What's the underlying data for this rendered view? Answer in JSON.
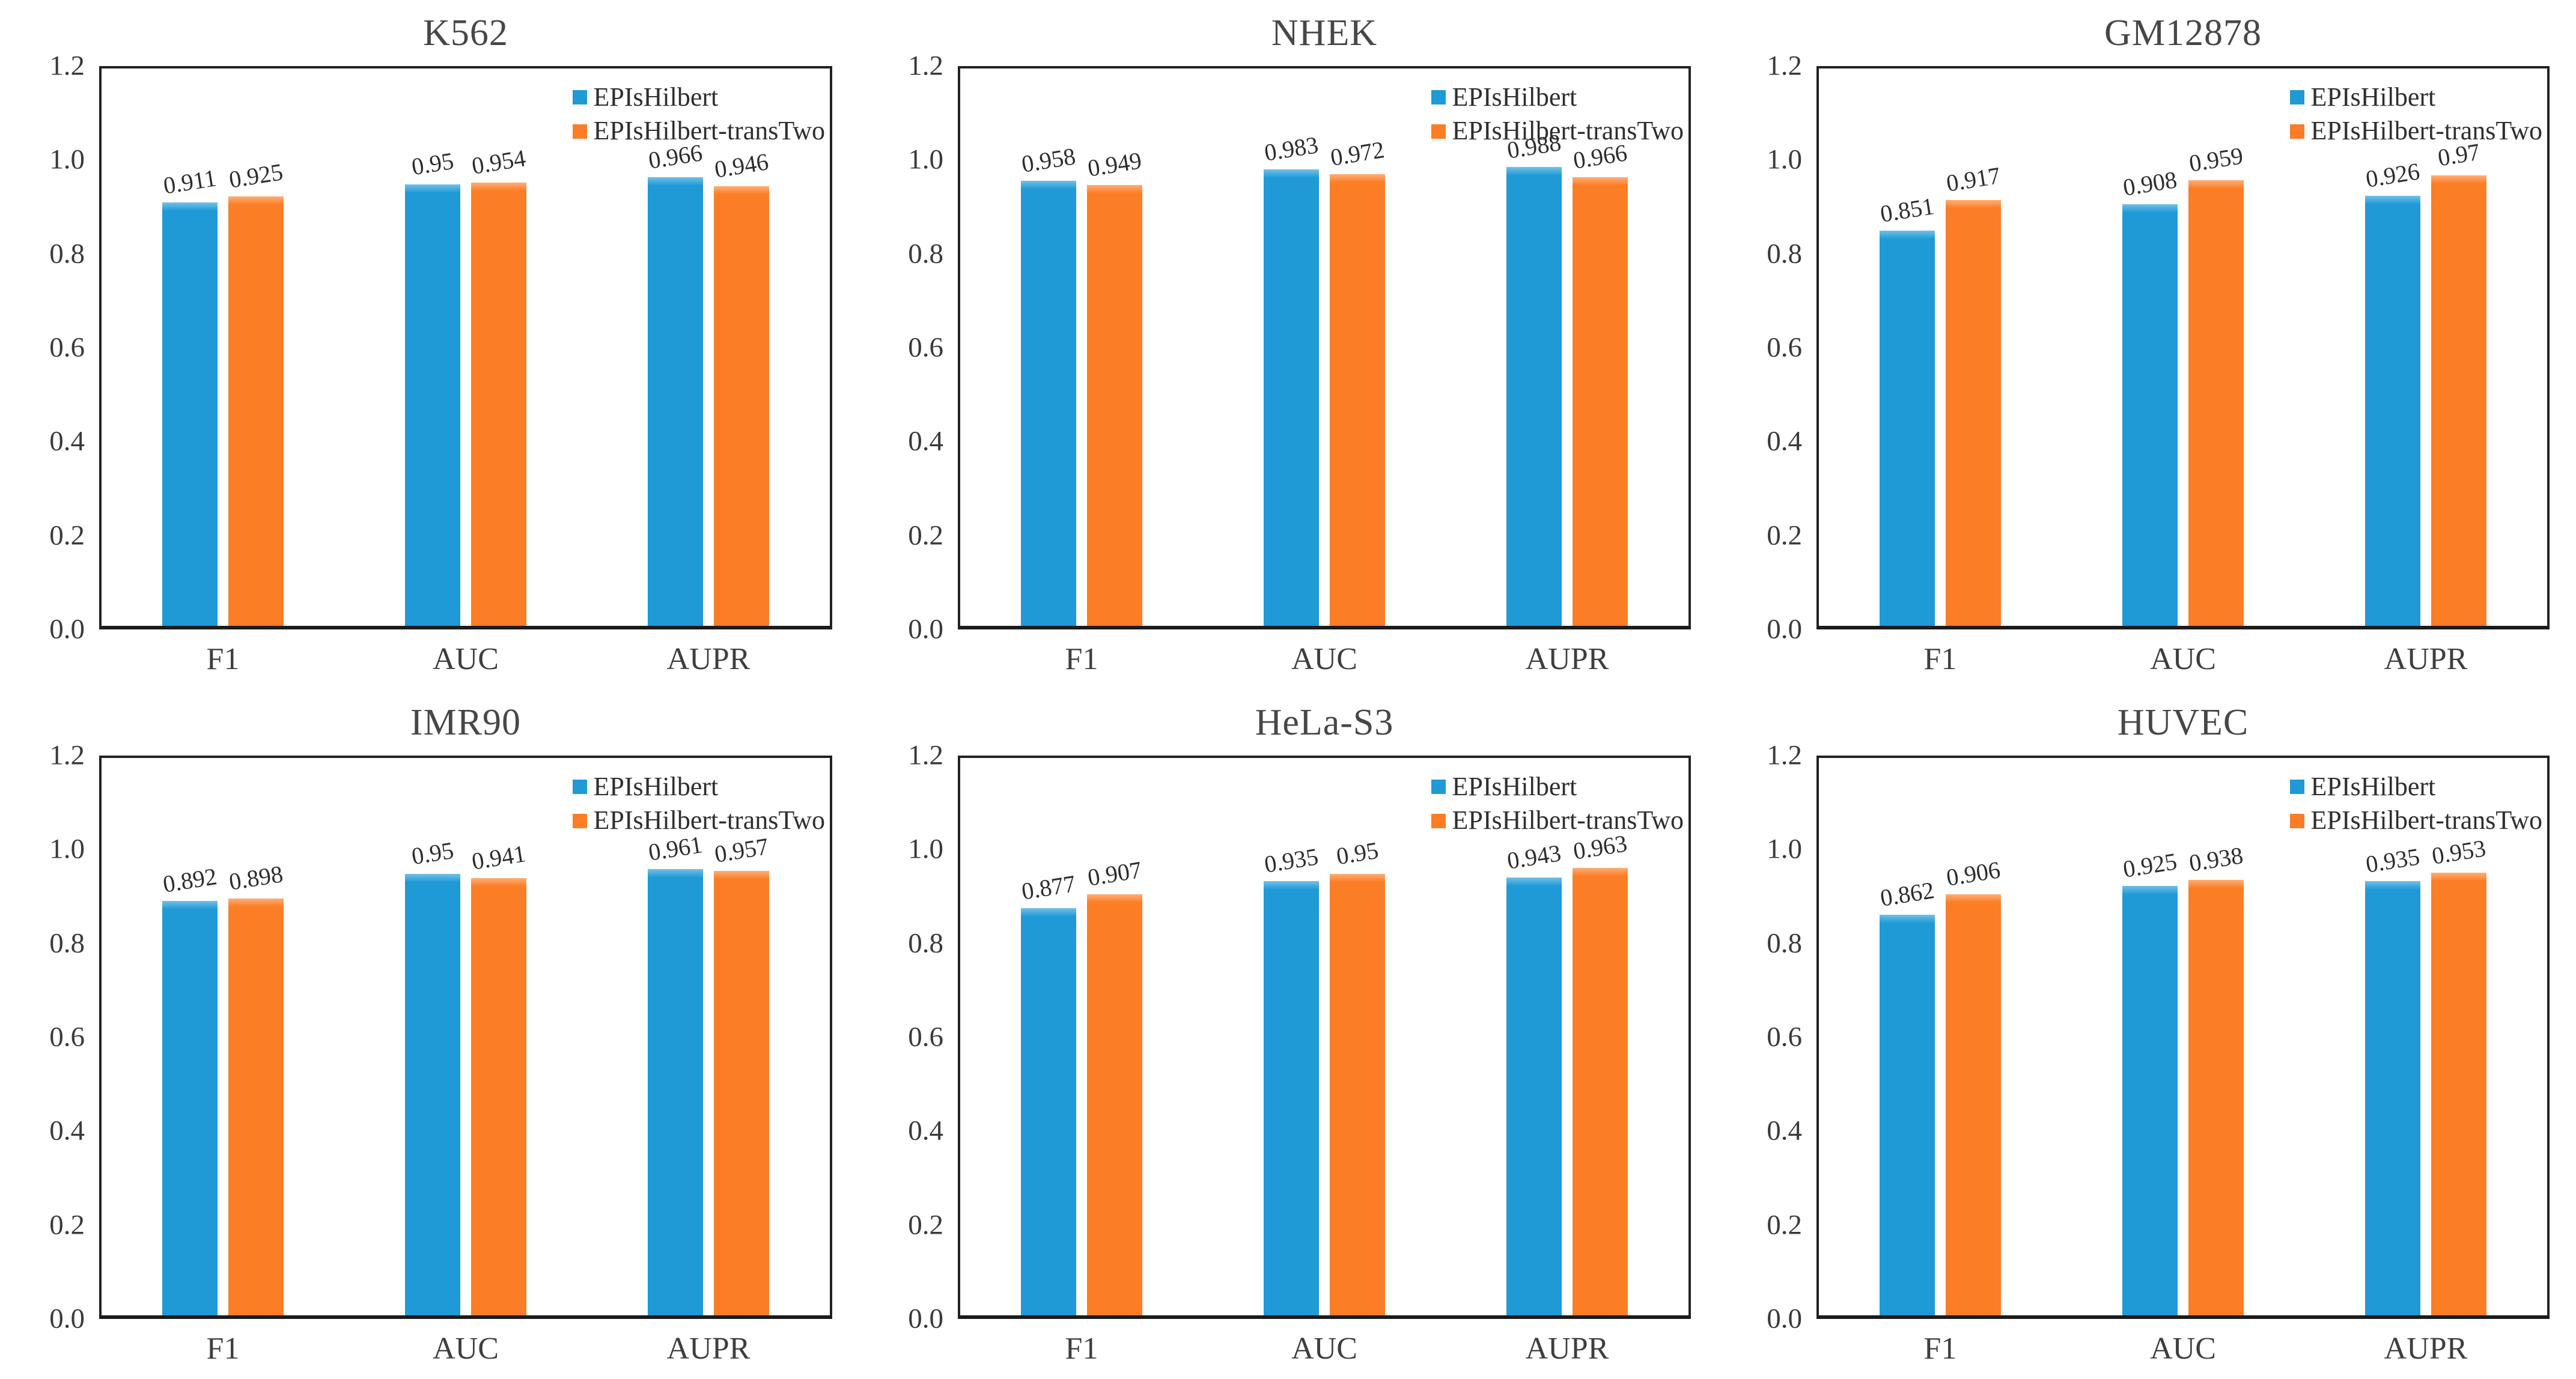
{
  "figure": {
    "background": "#FFFFFF",
    "text_color": "#3C3C3C",
    "axis_border_color": "#222222",
    "series_palette": [
      "#1F9AD6",
      "#FB7D25"
    ],
    "series_names": [
      "EPIsHilbert",
      "EPIsHilbert-transTwo"
    ],
    "layout": "2 rows x 3 columns"
  },
  "chart_data": [
    {
      "type": "bar",
      "title": "K562",
      "categories": [
        "F1",
        "AUC",
        "AUPR"
      ],
      "series": [
        {
          "name": "EPIsHilbert",
          "color": "#1F9AD6",
          "values": [
            0.911,
            0.95,
            0.966
          ],
          "labels": [
            "0.911",
            "0.95",
            "0.966"
          ]
        },
        {
          "name": "EPIsHilbert-transTwo",
          "color": "#FB7D25",
          "values": [
            0.925,
            0.954,
            0.946
          ],
          "labels": [
            "0.925",
            "0.954",
            "0.946"
          ]
        }
      ],
      "xlabel": "",
      "ylabel": "",
      "ylim": [
        0,
        1.2
      ],
      "yticks": [
        "0.0",
        "0.2",
        "0.4",
        "0.6",
        "0.8",
        "1.0",
        "1.2"
      ],
      "grid": false,
      "legend_position": "top-right-inside"
    },
    {
      "type": "bar",
      "title": "NHEK",
      "categories": [
        "F1",
        "AUC",
        "AUPR"
      ],
      "series": [
        {
          "name": "EPIsHilbert",
          "color": "#1F9AD6",
          "values": [
            0.958,
            0.983,
            0.988
          ],
          "labels": [
            "0.958",
            "0.983",
            "0.988"
          ]
        },
        {
          "name": "EPIsHilbert-transTwo",
          "color": "#FB7D25",
          "values": [
            0.949,
            0.972,
            0.966
          ],
          "labels": [
            "0.949",
            "0.972",
            "0.966"
          ]
        }
      ],
      "xlabel": "",
      "ylabel": "",
      "ylim": [
        0,
        1.2
      ],
      "yticks": [
        "0.0",
        "0.2",
        "0.4",
        "0.6",
        "0.8",
        "1.0",
        "1.2"
      ],
      "grid": false,
      "legend_position": "top-right-inside"
    },
    {
      "type": "bar",
      "title": "GM12878",
      "categories": [
        "F1",
        "AUC",
        "AUPR"
      ],
      "series": [
        {
          "name": "EPIsHilbert",
          "color": "#1F9AD6",
          "values": [
            0.851,
            0.908,
            0.926
          ],
          "labels": [
            "0.851",
            "0.908",
            "0.926"
          ]
        },
        {
          "name": "EPIsHilbert-transTwo",
          "color": "#FB7D25",
          "values": [
            0.917,
            0.959,
            0.97
          ],
          "labels": [
            "0.917",
            "0.959",
            "0.97"
          ]
        }
      ],
      "xlabel": "",
      "ylabel": "",
      "ylim": [
        0,
        1.2
      ],
      "yticks": [
        "0.0",
        "0.2",
        "0.4",
        "0.6",
        "0.8",
        "1.0",
        "1.2"
      ],
      "grid": false,
      "legend_position": "top-right-inside"
    },
    {
      "type": "bar",
      "title": "IMR90",
      "categories": [
        "F1",
        "AUC",
        "AUPR"
      ],
      "series": [
        {
          "name": "EPIsHilbert",
          "color": "#1F9AD6",
          "values": [
            0.892,
            0.95,
            0.961
          ],
          "labels": [
            "0.892",
            "0.95",
            "0.961"
          ]
        },
        {
          "name": "EPIsHilbert-transTwo",
          "color": "#FB7D25",
          "values": [
            0.898,
            0.941,
            0.957
          ],
          "labels": [
            "0.898",
            "0.941",
            "0.957"
          ]
        }
      ],
      "xlabel": "",
      "ylabel": "",
      "ylim": [
        0,
        1.2
      ],
      "yticks": [
        "0.0",
        "0.2",
        "0.4",
        "0.6",
        "0.8",
        "1.0",
        "1.2"
      ],
      "grid": false,
      "legend_position": "top-right-inside"
    },
    {
      "type": "bar",
      "title": "HeLa-S3",
      "categories": [
        "F1",
        "AUC",
        "AUPR"
      ],
      "series": [
        {
          "name": "EPIsHilbert",
          "color": "#1F9AD6",
          "values": [
            0.877,
            0.935,
            0.943
          ],
          "labels": [
            "0.877",
            "0.935",
            "0.943"
          ]
        },
        {
          "name": "EPIsHilbert-transTwo",
          "color": "#FB7D25",
          "values": [
            0.907,
            0.95,
            0.963
          ],
          "labels": [
            "0.907",
            "0.95",
            "0.963"
          ]
        }
      ],
      "xlabel": "",
      "ylabel": "",
      "ylim": [
        0,
        1.2
      ],
      "yticks": [
        "0.0",
        "0.2",
        "0.4",
        "0.6",
        "0.8",
        "1.0",
        "1.2"
      ],
      "grid": false,
      "legend_position": "top-right-inside"
    },
    {
      "type": "bar",
      "title": "HUVEC",
      "categories": [
        "F1",
        "AUC",
        "AUPR"
      ],
      "series": [
        {
          "name": "EPIsHilbert",
          "color": "#1F9AD6",
          "values": [
            0.862,
            0.925,
            0.935
          ],
          "labels": [
            "0.862",
            "0.925",
            "0.935"
          ]
        },
        {
          "name": "EPIsHilbert-transTwo",
          "color": "#FB7D25",
          "values": [
            0.906,
            0.938,
            0.953
          ],
          "labels": [
            "0.906",
            "0.938",
            "0.953"
          ]
        }
      ],
      "xlabel": "",
      "ylabel": "",
      "ylim": [
        0,
        1.2
      ],
      "yticks": [
        "0.0",
        "0.2",
        "0.4",
        "0.6",
        "0.8",
        "1.0",
        "1.2"
      ],
      "grid": false,
      "legend_position": "top-right-inside"
    }
  ]
}
